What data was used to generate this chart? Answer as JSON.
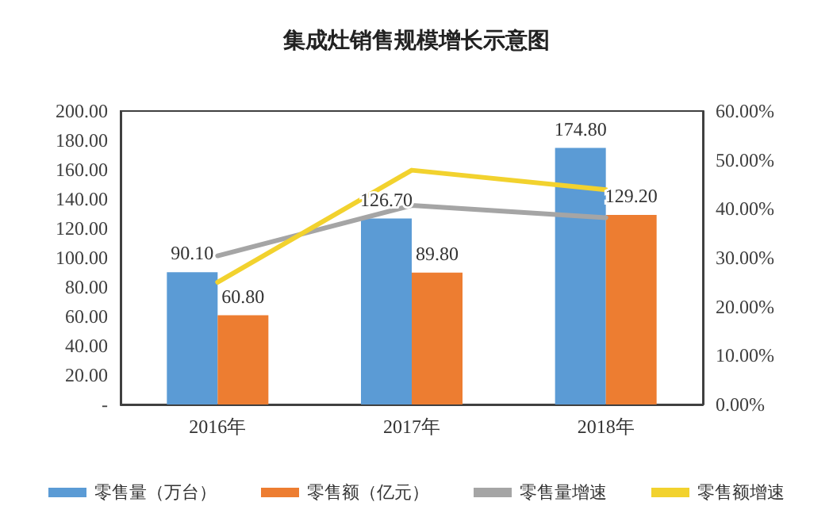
{
  "chart_data": {
    "type": "bar",
    "title": "集成灶销售规模增长示意图",
    "categories": [
      "2016年",
      "2017年",
      "2018年"
    ],
    "series": [
      {
        "name": "零售量（万台）",
        "color": "#5b9bd5",
        "values": [
          90.1,
          126.7,
          174.8
        ],
        "value_labels": [
          "90.10",
          "126.70",
          "174.80"
        ]
      },
      {
        "name": "零售额（亿元）",
        "color": "#ed7d31",
        "values": [
          60.8,
          89.8,
          129.2
        ],
        "value_labels": [
          "60.80",
          "89.80",
          "129.20"
        ]
      },
      {
        "name": "零售量增速",
        "type": "line",
        "axis": "y2",
        "color": "#a5a5a5",
        "values": [
          30.4,
          40.7,
          38.2
        ]
      },
      {
        "name": "零售额增速",
        "type": "line",
        "axis": "y2",
        "color": "#f2d22e",
        "values": [
          25.0,
          47.9,
          43.9
        ]
      }
    ],
    "ylim": [
      0,
      200
    ],
    "yticks": [
      {
        "value": 0,
        "label": "-"
      },
      {
        "value": 20,
        "label": "20.00"
      },
      {
        "value": 40,
        "label": "40.00"
      },
      {
        "value": 60,
        "label": "60.00"
      },
      {
        "value": 80,
        "label": "80.00"
      },
      {
        "value": 100,
        "label": "100.00"
      },
      {
        "value": 120,
        "label": "120.00"
      },
      {
        "value": 140,
        "label": "140.00"
      },
      {
        "value": 160,
        "label": "160.00"
      },
      {
        "value": 180,
        "label": "180.00"
      },
      {
        "value": 200,
        "label": "200.00"
      }
    ],
    "y2lim": [
      0,
      60
    ],
    "y2ticks": [
      {
        "value": 0,
        "label": "0.00%"
      },
      {
        "value": 10,
        "label": "10.00%"
      },
      {
        "value": 20,
        "label": "20.00%"
      },
      {
        "value": 30,
        "label": "30.00%"
      },
      {
        "value": 40,
        "label": "40.00%"
      },
      {
        "value": 50,
        "label": "50.00%"
      },
      {
        "value": 60,
        "label": "60.00%"
      }
    ],
    "legend": "bottom",
    "grid": false,
    "marker": "none",
    "line_style": "solid"
  }
}
